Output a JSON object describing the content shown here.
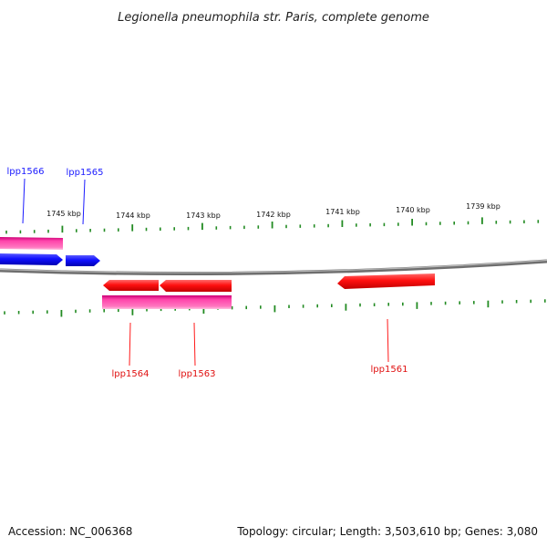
{
  "title": "Legionella pneumophila str. Paris, complete genome",
  "footer": {
    "accession": "Accession: NC_006368",
    "summary": "Topology: circular; Length: 3,503,610 bp; Genes: 3,080"
  },
  "colors": {
    "forward_gene": "#1a1aff",
    "reverse_gene": "#ff1a1a",
    "cds_band": "#ff3399",
    "ruler_tick": "#228b22",
    "backbone": "#808080"
  },
  "scale_labels": [
    "1745 kbp",
    "1744 kbp",
    "1743 kbp",
    "1742 kbp",
    "1741 kbp",
    "1740 kbp",
    "1739 kbp"
  ],
  "genes": [
    {
      "name": "lpp1566",
      "strand": "forward"
    },
    {
      "name": "lpp1565",
      "strand": "forward"
    },
    {
      "name": "lpp1564",
      "strand": "reverse"
    },
    {
      "name": "lpp1563",
      "strand": "reverse"
    },
    {
      "name": "lpp1561",
      "strand": "reverse"
    }
  ]
}
